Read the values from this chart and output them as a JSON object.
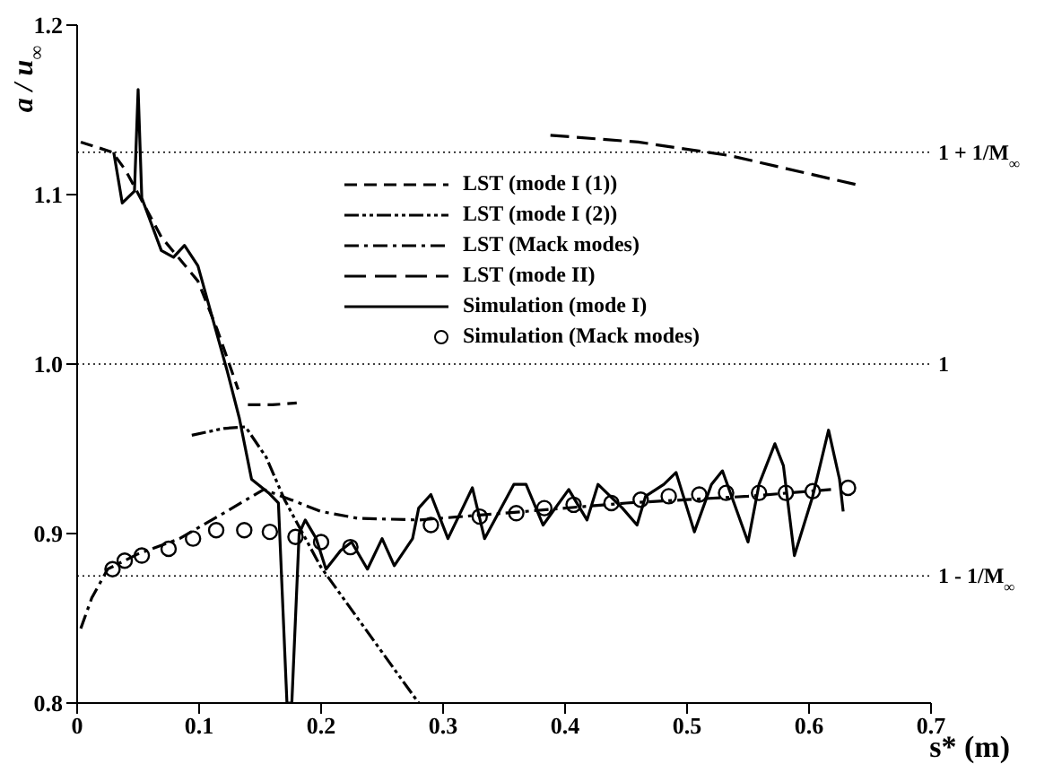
{
  "chart_data": {
    "type": "line",
    "xlabel": "s* (m)",
    "ylabel": "a / u$_{∞}$",
    "xlim": [
      0,
      0.7
    ],
    "xticks": [
      0,
      0.1,
      0.2,
      0.3,
      0.4,
      0.5,
      0.6,
      0.7
    ],
    "ylim": [
      0.8,
      1.2
    ],
    "yticks": [
      0.8,
      0.9,
      {
        "value": 1.0,
        "label": "1.0"
      },
      1.1,
      1.2
    ],
    "grid": false,
    "legend": "top",
    "marker": "none",
    "ref_lines": [
      {
        "axis": "y",
        "value": 1.125,
        "label": "1 + 1/M$_{∞}$",
        "line_style": "dotted"
      },
      {
        "axis": "y",
        "value": 1.0,
        "label": "1",
        "line_style": "dotted"
      },
      {
        "axis": "y",
        "value": 0.875,
        "label": "1 - 1/M$_{∞}$",
        "line_style": "dotted"
      }
    ],
    "series": [
      {
        "name": "LST (mode I (1))",
        "line_style": "dashed",
        "color": "#000000",
        "x": [
          0.003,
          0.029,
          0.04,
          0.069,
          0.099,
          0.115,
          0.132,
          0.137,
          0.14,
          0.16,
          0.18
        ],
        "values": [
          1.131,
          1.125,
          1.114,
          1.075,
          1.049,
          1.02,
          0.985,
          null,
          0.976,
          0.976,
          0.977
        ]
      },
      {
        "name": "LST (mode I (2))",
        "line_style": "dashdotdot",
        "color": "#000000",
        "x": [
          0.094,
          0.12,
          0.138,
          0.155,
          0.17,
          0.2,
          0.24,
          0.28
        ],
        "values": [
          0.958,
          0.962,
          0.963,
          0.945,
          0.92,
          0.88,
          0.84,
          0.8
        ]
      },
      {
        "name": "LST (Mack modes)",
        "line_style": "dashdot",
        "color": "#000000",
        "x": [
          0.003,
          0.012,
          0.025,
          0.05,
          0.084,
          0.12,
          0.153,
          0.175,
          0.2,
          0.23,
          0.28,
          0.35,
          0.45,
          0.55,
          0.618
        ],
        "values": [
          0.844,
          0.862,
          0.879,
          0.888,
          0.897,
          0.912,
          0.926,
          0.92,
          0.913,
          0.909,
          0.908,
          0.912,
          0.918,
          0.922,
          0.926
        ]
      },
      {
        "name": "LST (mode II)",
        "line_style": "longdash",
        "color": "#000000",
        "x": [
          0.388,
          0.46,
          0.535,
          0.638
        ],
        "values": [
          1.135,
          1.131,
          1.123,
          1.106
        ]
      },
      {
        "name": "Simulation (mode I)",
        "line_style": "solid",
        "color": "#000000",
        "x": [
          0.03,
          0.037,
          0.047,
          0.05,
          0.053,
          0.069,
          0.079,
          0.088,
          0.099,
          0.123,
          0.133,
          0.143,
          0.157,
          0.165,
          0.172,
          0.176,
          0.182,
          0.187,
          0.196,
          0.204,
          0.216,
          0.225,
          0.238,
          0.25,
          0.26,
          0.275,
          0.28,
          0.29,
          0.304,
          0.324,
          0.334,
          0.358,
          0.368,
          0.382,
          0.403,
          0.418,
          0.427,
          0.447,
          0.459,
          0.466,
          0.481,
          0.491,
          0.506,
          0.52,
          0.529,
          0.55,
          0.559,
          0.572,
          0.579,
          0.588,
          0.603,
          0.616,
          0.625,
          0.628
        ],
        "values": [
          1.125,
          1.095,
          1.102,
          1.162,
          1.098,
          1.067,
          1.063,
          1.07,
          1.058,
          0.996,
          0.968,
          0.932,
          0.924,
          0.918,
          0.8,
          0.8,
          0.9,
          0.908,
          0.897,
          0.879,
          0.89,
          0.895,
          0.879,
          0.897,
          0.881,
          0.897,
          0.915,
          0.923,
          0.897,
          0.927,
          0.897,
          0.929,
          0.929,
          0.905,
          0.926,
          0.908,
          0.929,
          0.915,
          0.905,
          0.922,
          0.929,
          0.936,
          0.901,
          0.929,
          0.937,
          0.895,
          0.929,
          0.953,
          0.94,
          0.887,
          0.922,
          0.961,
          0.932,
          0.913
        ]
      },
      {
        "name": "Simulation (Mack modes)",
        "type": "scatter",
        "marker": "circle",
        "color": "#000000",
        "x": [
          0.029,
          0.039,
          0.053,
          0.075,
          0.095,
          0.114,
          0.137,
          0.158,
          0.179,
          0.2,
          0.224,
          0.29,
          0.33,
          0.36,
          0.383,
          0.407,
          0.438,
          0.462,
          0.485,
          0.51,
          0.532,
          0.559,
          0.581,
          0.603,
          0.632
        ],
        "values": [
          0.879,
          0.884,
          0.887,
          0.891,
          0.897,
          0.902,
          0.902,
          0.901,
          0.898,
          0.895,
          0.892,
          0.905,
          0.91,
          0.912,
          0.915,
          0.917,
          0.918,
          0.92,
          0.922,
          0.923,
          0.924,
          0.924,
          0.924,
          0.925,
          0.927
        ]
      }
    ]
  }
}
